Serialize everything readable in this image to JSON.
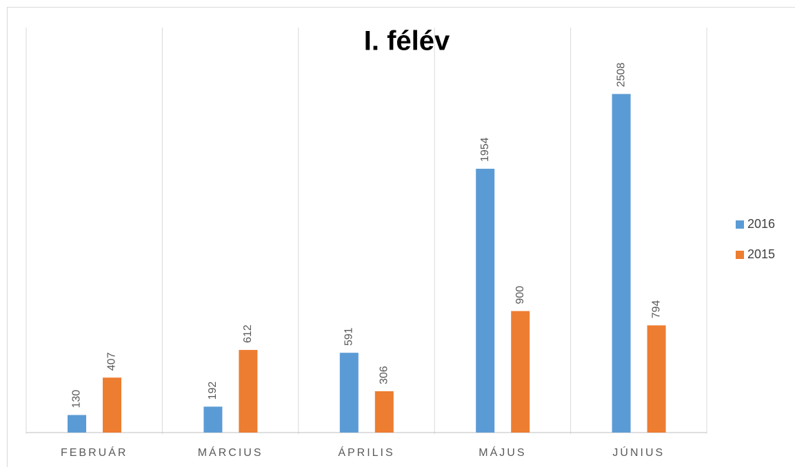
{
  "chart_data": {
    "type": "bar",
    "title": "I. félév",
    "categories": [
      "FEBRUÁR",
      "MÁRCIUS",
      "ÁPRILIS",
      "MÁJUS",
      "JÚNIUS"
    ],
    "series": [
      {
        "name": "2016",
        "color": "#5b9bd5",
        "values": [
          130,
          192,
          591,
          1954,
          2508
        ]
      },
      {
        "name": "2015",
        "color": "#ed7d31",
        "values": [
          407,
          612,
          306,
          900,
          794
        ]
      }
    ],
    "ylim": [
      0,
      3000
    ],
    "legend": "right"
  }
}
